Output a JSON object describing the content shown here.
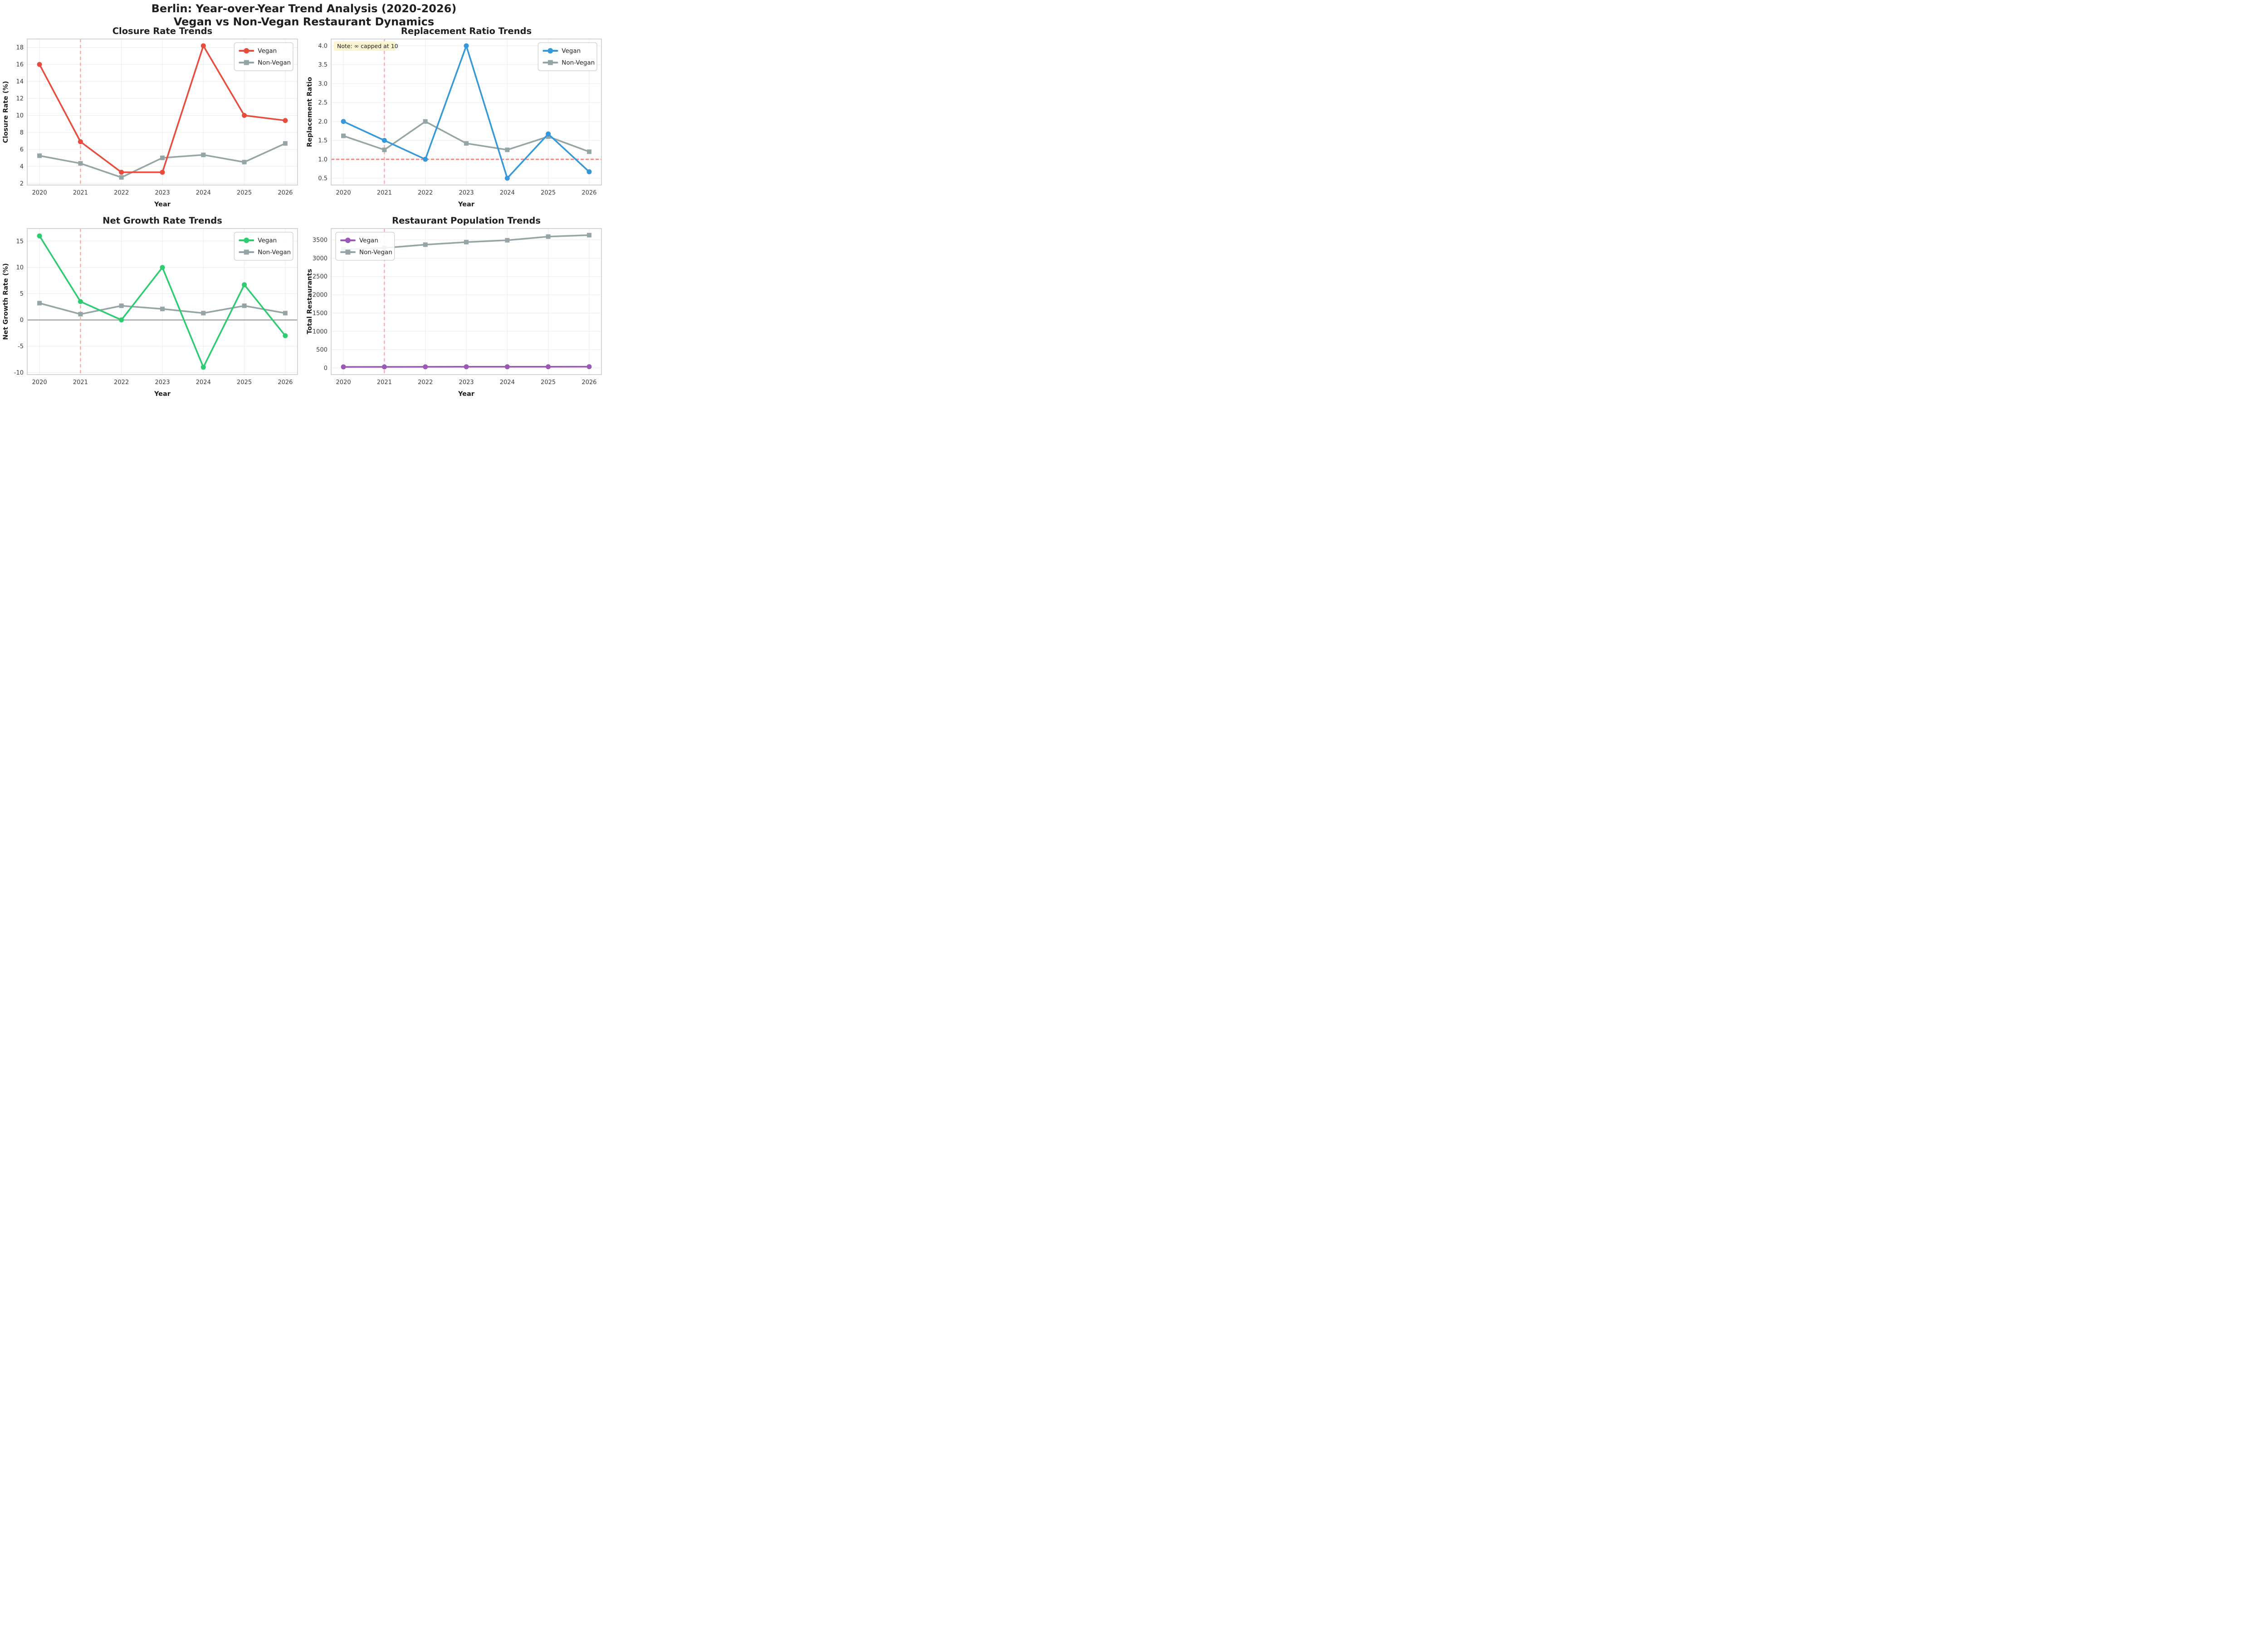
{
  "page": {
    "suptitle_line1": "Berlin: Year-over-Year Trend Analysis (2020-2026)",
    "suptitle_line2": "Vegan vs Non-Vegan Restaurant Dynamics"
  },
  "style": {
    "background": "#ffffff",
    "grid_color": "#ebebeb",
    "spine_color": "#d3d6d9",
    "text_color": "#1f1f1f",
    "tick_color": "#3b3b3b",
    "vline_color": "#f3a6a3",
    "note_bg": "#fbf5d2",
    "legend_border": "#cccccc",
    "non_vegan_color": "#95a5a6"
  },
  "chart_data": [
    {
      "type": "line",
      "title": "Closure Rate Trends",
      "xlabel": "Year",
      "ylabel": "Closure Rate (%)",
      "categories": [
        2020,
        2021,
        2022,
        2023,
        2024,
        2025,
        2026
      ],
      "xlim": [
        2019.7,
        2026.3
      ],
      "ylim": [
        1.8,
        19.0
      ],
      "yticks": [
        2,
        4,
        6,
        8,
        10,
        12,
        14,
        16,
        18
      ],
      "ytick_labels": [
        "2",
        "4",
        "6",
        "8",
        "10",
        "12",
        "14",
        "16",
        "18"
      ],
      "grid": true,
      "legend_pos": "upper-right",
      "vline_x": 2021,
      "series": [
        {
          "name": "Vegan",
          "color": "#e74c3c",
          "marker": "circle",
          "values": [
            16.0,
            6.9,
            3.3,
            3.3,
            18.2,
            10.0,
            9.4
          ]
        },
        {
          "name": "Non-Vegan",
          "color": "#95a5a6",
          "marker": "square",
          "values": [
            5.25,
            4.35,
            2.7,
            5.0,
            5.35,
            4.5,
            6.7
          ]
        }
      ]
    },
    {
      "type": "line",
      "title": "Replacement Ratio Trends",
      "xlabel": "Year",
      "ylabel": "Replacement Ratio",
      "categories": [
        2020,
        2021,
        2022,
        2023,
        2024,
        2025,
        2026
      ],
      "xlim": [
        2019.7,
        2026.3
      ],
      "ylim": [
        0.32,
        4.18
      ],
      "yticks": [
        0.5,
        1.0,
        1.5,
        2.0,
        2.5,
        3.0,
        3.5,
        4.0
      ],
      "ytick_labels": [
        "0.5",
        "1.0",
        "1.5",
        "2.0",
        "2.5",
        "3.0",
        "3.5",
        "4.0"
      ],
      "grid": true,
      "legend_pos": "upper-right",
      "vline_x": 2021,
      "hline": {
        "y": 1.0,
        "color": "#f4827b",
        "width": 2.6,
        "dash": [
          7,
          4
        ]
      },
      "note": "Note: ∞ capped at 10",
      "series": [
        {
          "name": "Vegan",
          "color": "#3498db",
          "marker": "circle",
          "values": [
            2.0,
            1.5,
            1.0,
            4.0,
            0.5,
            1.67,
            0.67
          ]
        },
        {
          "name": "Non-Vegan",
          "color": "#95a5a6",
          "marker": "square",
          "values": [
            1.62,
            1.25,
            2.0,
            1.42,
            1.25,
            1.6,
            1.2
          ]
        }
      ]
    },
    {
      "type": "line",
      "title": "Net Growth Rate Trends",
      "xlabel": "Year",
      "ylabel": "Net Growth Rate (%)",
      "categories": [
        2020,
        2021,
        2022,
        2023,
        2024,
        2025,
        2026
      ],
      "xlim": [
        2019.7,
        2026.3
      ],
      "ylim": [
        -10.4,
        17.4
      ],
      "yticks": [
        -10,
        -5,
        0,
        5,
        10,
        15
      ],
      "ytick_labels": [
        "-10",
        "-5",
        "0",
        "5",
        "10",
        "15"
      ],
      "grid": true,
      "legend_pos": "upper-right",
      "vline_x": 2021,
      "hline": {
        "y": 0,
        "color": "#8a8a8a",
        "width": 1.8,
        "dash": null
      },
      "series": [
        {
          "name": "Vegan",
          "color": "#2ecc71",
          "marker": "circle",
          "values": [
            16.0,
            3.5,
            0.0,
            10.0,
            -9.0,
            6.7,
            -3.0
          ]
        },
        {
          "name": "Non-Vegan",
          "color": "#95a5a6",
          "marker": "square",
          "values": [
            3.2,
            1.1,
            2.7,
            2.1,
            1.3,
            2.7,
            1.3
          ]
        }
      ]
    },
    {
      "type": "line",
      "title": "Restaurant Population Trends",
      "xlabel": "Year",
      "ylabel": "Total Restaurants",
      "categories": [
        2020,
        2021,
        2022,
        2023,
        2024,
        2025,
        2026
      ],
      "xlim": [
        2019.7,
        2026.3
      ],
      "ylim": [
        -180,
        3810
      ],
      "yticks": [
        0,
        500,
        1000,
        1500,
        2000,
        2500,
        3000,
        3500
      ],
      "ytick_labels": [
        "0",
        "500",
        "1000",
        "1500",
        "2000",
        "2500",
        "3000",
        "3500"
      ],
      "grid": true,
      "legend_pos": "upper-left",
      "vline_x": 2021,
      "series": [
        {
          "name": "Vegan",
          "color": "#9b59b6",
          "marker": "circle",
          "values": [
            30,
            31,
            32,
            33,
            33,
            34,
            35
          ]
        },
        {
          "name": "Non-Vegan",
          "color": "#95a5a6",
          "marker": "square",
          "values": [
            3240,
            3280,
            3370,
            3440,
            3490,
            3590,
            3630
          ]
        }
      ]
    }
  ]
}
